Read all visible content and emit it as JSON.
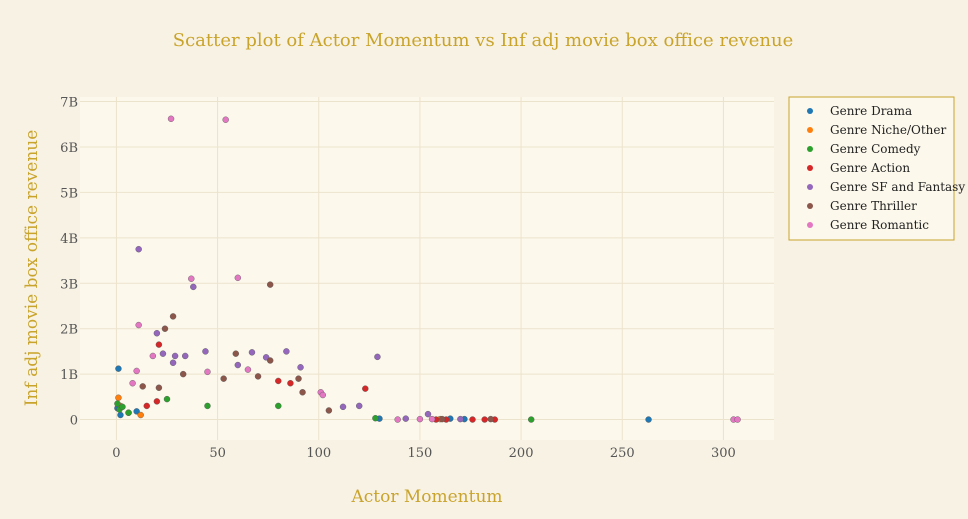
{
  "chart_data": {
    "type": "scatter",
    "title": "Scatter plot of Actor Momentum vs Inf adj movie box office revenue",
    "xlabel": "Actor Momentum",
    "ylabel": "Inf adj movie box office revenue",
    "xlim": [
      -18,
      325
    ],
    "ylim": [
      -0.45,
      7.1
    ],
    "x_ticks": [
      0,
      50,
      100,
      150,
      200,
      250,
      300
    ],
    "x_tick_labels": [
      "0",
      "50",
      "100",
      "150",
      "200",
      "250",
      "300"
    ],
    "y_ticks": [
      0,
      1,
      2,
      3,
      4,
      5,
      6,
      7
    ],
    "y_tick_labels": [
      "0",
      "1B",
      "2B",
      "3B",
      "4B",
      "5B",
      "6B",
      "7B"
    ],
    "y_unit": "billions",
    "grid": true,
    "legend_position": "right",
    "series": [
      {
        "name": "Genre Drama",
        "color": "#1f77b4",
        "points": [
          [
            1,
            1.12
          ],
          [
            0.5,
            0.25
          ],
          [
            2,
            0.1
          ],
          [
            10,
            0.18
          ],
          [
            130,
            0.02
          ],
          [
            165,
            0.02
          ],
          [
            172,
            0.01
          ],
          [
            263,
            0.0
          ]
        ]
      },
      {
        "name": "Genre Niche/Other",
        "color": "#ff7f0e",
        "points": [
          [
            1,
            0.48
          ],
          [
            2,
            0.3
          ],
          [
            6,
            0.15
          ],
          [
            12,
            0.1
          ],
          [
            160,
            0.01
          ]
        ]
      },
      {
        "name": "Genre Comedy",
        "color": "#2ca02c",
        "points": [
          [
            0.5,
            0.35
          ],
          [
            1.5,
            0.22
          ],
          [
            3,
            0.28
          ],
          [
            6,
            0.15
          ],
          [
            25,
            0.45
          ],
          [
            45,
            0.3
          ],
          [
            80,
            0.3
          ],
          [
            205,
            0.0
          ],
          [
            128,
            0.03
          ]
        ]
      },
      {
        "name": "Genre Action",
        "color": "#d62728",
        "points": [
          [
            21,
            1.65
          ],
          [
            80,
            0.85
          ],
          [
            123,
            0.68
          ],
          [
            86,
            0.8
          ],
          [
            20,
            0.4
          ],
          [
            15,
            0.3
          ],
          [
            158,
            0.0
          ],
          [
            176,
            0.0
          ],
          [
            182,
            0.0
          ],
          [
            187,
            0.0
          ],
          [
            163,
            0.0
          ]
        ]
      },
      {
        "name": "Genre SF and Fantasy",
        "color": "#9467bd",
        "points": [
          [
            11,
            3.75
          ],
          [
            38,
            2.92
          ],
          [
            129,
            1.38
          ],
          [
            20,
            1.9
          ],
          [
            23,
            1.45
          ],
          [
            29,
            1.4
          ],
          [
            34,
            1.4
          ],
          [
            44,
            1.5
          ],
          [
            67,
            1.48
          ],
          [
            84,
            1.5
          ],
          [
            91,
            1.15
          ],
          [
            74,
            1.37
          ],
          [
            60,
            1.2
          ],
          [
            154,
            0.12
          ],
          [
            120,
            0.3
          ],
          [
            112,
            0.28
          ],
          [
            143,
            0.02
          ],
          [
            170,
            0.01
          ],
          [
            28,
            1.25
          ]
        ]
      },
      {
        "name": "Genre Thriller",
        "color": "#8c564b",
        "points": [
          [
            28,
            2.27
          ],
          [
            76,
            2.97
          ],
          [
            24,
            2.0
          ],
          [
            59,
            1.45
          ],
          [
            90,
            0.9
          ],
          [
            76,
            1.3
          ],
          [
            92,
            0.6
          ],
          [
            105,
            0.2
          ],
          [
            185,
            0.01
          ],
          [
            161,
            0.01
          ],
          [
            21,
            0.7
          ],
          [
            13,
            0.73
          ],
          [
            33,
            1.0
          ],
          [
            53,
            0.9
          ],
          [
            70,
            0.95
          ]
        ]
      },
      {
        "name": "Genre Romantic",
        "color": "#e377c2",
        "points": [
          [
            27,
            6.62
          ],
          [
            54,
            6.6
          ],
          [
            37,
            3.1
          ],
          [
            60,
            3.12
          ],
          [
            11,
            2.08
          ],
          [
            10,
            1.07
          ],
          [
            18,
            1.4
          ],
          [
            8,
            0.8
          ],
          [
            101,
            0.6
          ],
          [
            102,
            0.54
          ],
          [
            305,
            0.0
          ],
          [
            307,
            0.0
          ],
          [
            150,
            0.01
          ],
          [
            156,
            0.01
          ],
          [
            139,
            0.0
          ],
          [
            45,
            1.05
          ],
          [
            65,
            1.1
          ]
        ]
      }
    ]
  }
}
